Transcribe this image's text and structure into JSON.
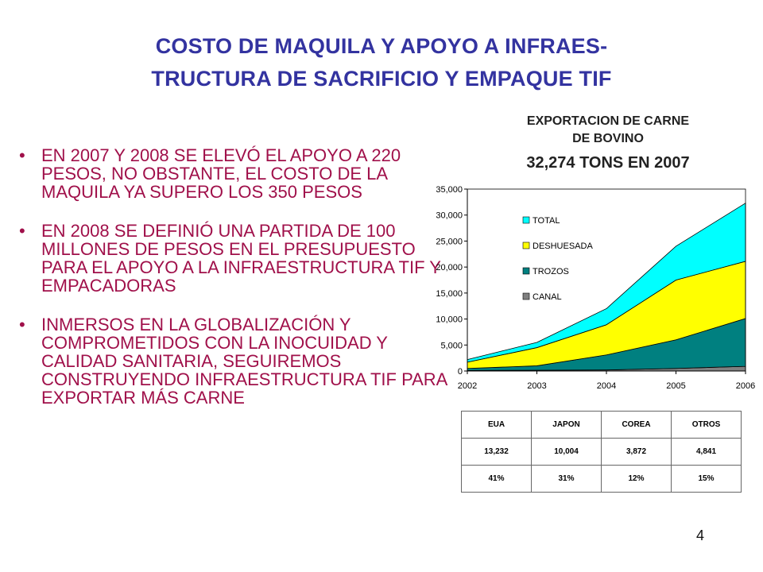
{
  "slide": {
    "title_line1": "COSTO DE MAQUILA Y APOYO  A INFRAES-",
    "title_line2": "TRUCTURA DE SACRIFICIO Y  EMPAQUE TIF",
    "bullets": [
      "EN 2007 Y 2008 SE ELEVÓ EL APOYO A 220 PESOS, NO OBSTANTE, EL COSTO DE LA MAQUILA YA SUPERO LOS 350 PESOS",
      "EN 2008 SE DEFINIÓ UNA PARTIDA DE 100 MILLONES DE PESOS EN EL PRESUPUESTO PARA EL APOYO A LA INFRAESTRUCTURA TIF Y EMPACADORAS",
      "INMERSOS EN LA GLOBALIZACIÓN Y COMPROMETIDOS CON LA INOCUIDAD Y CALIDAD SANITARIA, SEGUIREMOS CONSTRUYENDO INFRAESTRUCTURA TIF PARA EXPORTAR MÁS CARNE"
    ],
    "bullet_glyph": "•",
    "page_number": "4"
  },
  "chart_header": {
    "line1": "EXPORTACION  DE CARNE",
    "line2": "DE BOVINO",
    "line3": "32,274 TONS EN 2007"
  },
  "chart_data": {
    "type": "area",
    "stacked": true,
    "x": [
      2002,
      2003,
      2004,
      2005,
      2006
    ],
    "x_tick_labels": [
      "2002",
      "2003",
      "2004",
      "2005",
      "2006"
    ],
    "ylim": [
      0,
      35000
    ],
    "y_ticks": [
      0,
      5000,
      10000,
      15000,
      20000,
      25000,
      30000,
      35000
    ],
    "y_tick_labels": [
      "0",
      "5,000",
      "10,000",
      "15,000",
      "20,000",
      "25,000",
      "30,000",
      "35,000"
    ],
    "grid": false,
    "legend_position": "left-inside",
    "series": [
      {
        "name": "CANAL",
        "color": "#808080",
        "values": [
          100,
          150,
          200,
          500,
          900
        ]
      },
      {
        "name": "TROZOS",
        "color": "#008080",
        "values": [
          400,
          850,
          2900,
          5500,
          9200
        ]
      },
      {
        "name": "DESHUESADA",
        "color": "#ffff00",
        "values": [
          1200,
          3500,
          5800,
          11500,
          11000
        ]
      },
      {
        "name": "TOTAL",
        "color": "#00ffff",
        "values": [
          500,
          1000,
          3100,
          6500,
          11200
        ]
      }
    ],
    "legend_order": [
      "TOTAL",
      "DESHUESADA",
      "TROZOS",
      "CANAL"
    ]
  },
  "table": {
    "headers": [
      "EUA",
      "JAPON",
      "COREA",
      "OTROS"
    ],
    "rows": [
      [
        "13,232",
        "10,004",
        "3,872",
        "4,841"
      ],
      [
        "41%",
        "31%",
        "12%",
        "15%"
      ]
    ]
  }
}
